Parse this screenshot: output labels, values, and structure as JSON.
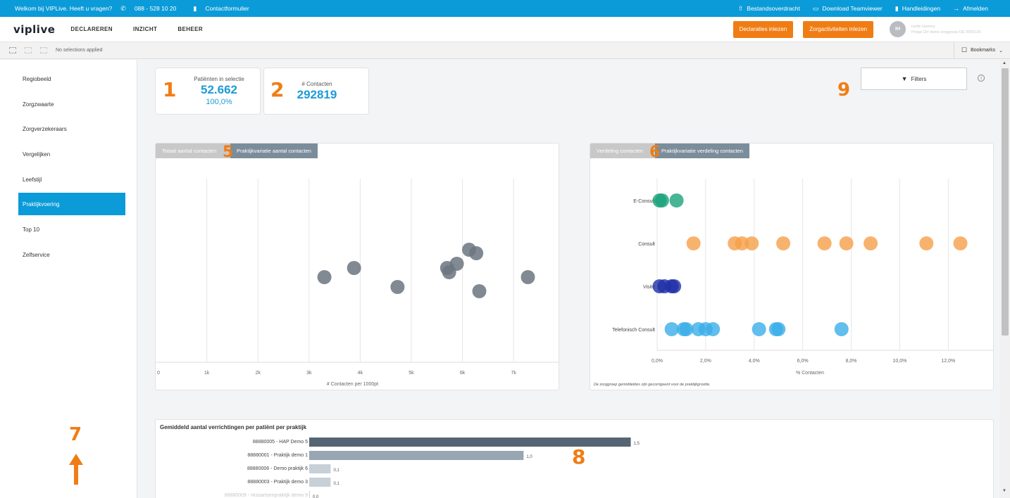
{
  "topbar": {
    "welcome": "Welkom bij VIPLive. Heeft u vragen?",
    "phone": "088 - 528 10 20",
    "contact": "Contactformulier",
    "links": [
      "Bestandsoverdracht",
      "Download Teamviewer",
      "Handleidingen",
      "Afmelden"
    ]
  },
  "header": {
    "logo": "viplive",
    "nav": [
      "DECLAREREN",
      "INZICHT",
      "BEHEER"
    ],
    "btn_declaraties": "Declaraties inlezen",
    "btn_zorgactiviteiten": "Zorgactiviteiten inlezen",
    "avatar": "IH",
    "user_name": "Ivette Hovens",
    "user_org": "Prega Ch! demo zorggroep DE 0000120"
  },
  "selection": {
    "text": "No selections applied",
    "bookmarks": "Bookmarks"
  },
  "sidebar": {
    "items": [
      "Regiobeeld",
      "Zorgzwaarte",
      "Zorgverzekeraars",
      "Vergelijken",
      "Leefstijl",
      "Praktijkvoering",
      "Top 10",
      "Zelfservice"
    ],
    "active": "Praktijkvoering"
  },
  "annotations": [
    "1",
    "2",
    "5",
    "6",
    "7",
    "8",
    "9"
  ],
  "kpi": {
    "patients_label": "Patiënten in selectie",
    "patients_value": "52.662",
    "patients_pct": "100,0%",
    "contacts_label": "# Contacten",
    "contacts_value": "292819"
  },
  "filters_label": "Filters",
  "chart_left": {
    "tab_inactive": "Totaal aantal contacten",
    "tab_active": "Praktijkvariatie aantal contacten"
  },
  "chart_right": {
    "tab_inactive": "Verdeling contacten",
    "tab_active": "Praktijkvariatie verdeling contacten",
    "footnote": "De zorggroep gemiddeldes zijn gecorrigeerd voor de praktijkgrootte."
  },
  "chart_bottom": {
    "title": "Gemiddeld aantal verrichtingen per patiënt per praktijk"
  },
  "colors": {
    "blue": "#0b9bd8",
    "orange": "#f07d14",
    "grey_dot": "#6b7680"
  },
  "chart_data": [
    {
      "type": "scatter",
      "xlabel": "# Contacten per 1000pt",
      "xlim": [
        0,
        7700
      ],
      "xticks": [
        "0",
        "1k",
        "2k",
        "3k",
        "4k",
        "5k",
        "6k",
        "7k"
      ],
      "points": [
        3300,
        3880,
        4730,
        5700,
        5740,
        5890,
        6130,
        6270,
        6330,
        7280
      ]
    },
    {
      "type": "scatter",
      "xlabel": "% Contacten",
      "xlim": [
        0,
        13.5
      ],
      "xticks": [
        "0,0%",
        "2,0%",
        "4,0%",
        "6,0%",
        "8,0%",
        "10,0%",
        "12,0%"
      ],
      "categories": [
        "E-Consult",
        "Consult",
        "Visite",
        "Telefonisch Consult"
      ],
      "series": [
        {
          "name": "E-Consult",
          "color": "#1aa37a",
          "values": [
            0.1,
            0.2,
            0.8
          ]
        },
        {
          "name": "Consult",
          "color": "#f5a04a",
          "values": [
            1.5,
            3.2,
            3.5,
            3.9,
            5.2,
            6.9,
            7.8,
            8.8,
            11.1,
            12.5
          ]
        },
        {
          "name": "Visite",
          "color": "#1f2fa8",
          "values": [
            0.1,
            0.3,
            0.6,
            0.7
          ]
        },
        {
          "name": "Telefonisch Consult",
          "color": "#3aaee8",
          "values": [
            0.6,
            1.1,
            1.2,
            1.7,
            2.0,
            2.3,
            4.2,
            4.9,
            5.0,
            7.6
          ]
        }
      ]
    },
    {
      "type": "bar",
      "title": "Gemiddeld aantal verrichtingen per patiënt per praktijk",
      "xlim": [
        0,
        1.6
      ],
      "categories": [
        "88880005 - HAP Demo 5",
        "88880001 - Praktijk demo 1",
        "88880006 - Demo praktijk 6",
        "88880003 - Praktijk demo 3",
        "88880009 - Huisartsenpraktijk demo 9"
      ],
      "values": [
        1.5,
        1.0,
        0.1,
        0.1,
        0.0
      ],
      "labels": [
        "1,5",
        "1,0",
        "0,1",
        "0,1",
        "0,0"
      ]
    }
  ]
}
